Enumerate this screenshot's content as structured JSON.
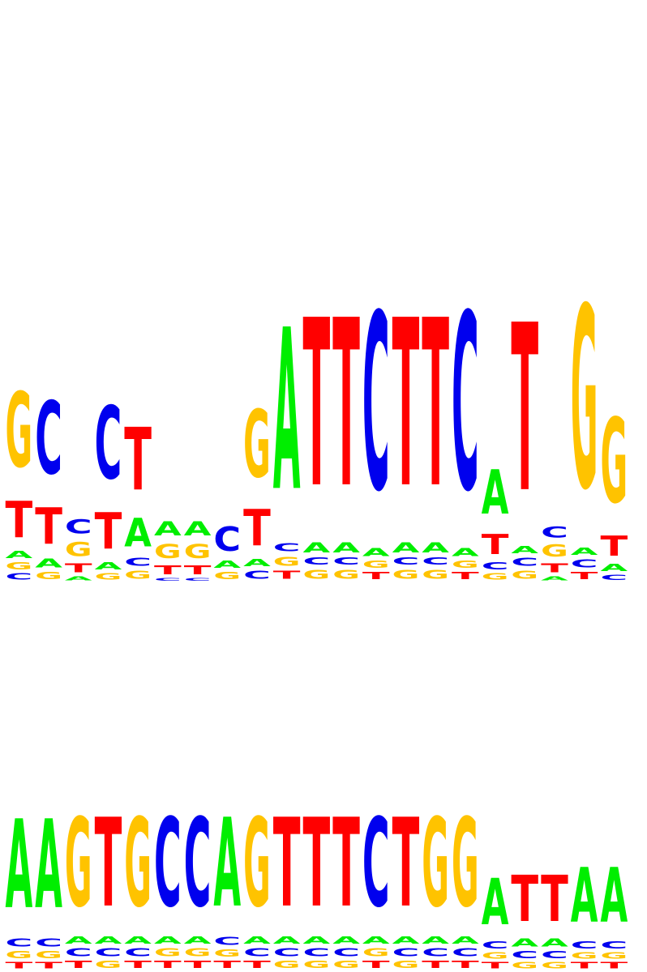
{
  "colors": {
    "A": "#00ee00",
    "C": "#0000ee",
    "G": "#ffc300",
    "T": "#ff0000"
  },
  "logos": [
    {
      "name": "sequence-logo-top",
      "columns": [
        [
          [
            "C",
            0.03
          ],
          [
            "G",
            0.035
          ],
          [
            "A",
            0.035
          ],
          [
            "T",
            0.18
          ],
          [
            "G",
            0.37
          ]
        ],
        [
          [
            "G",
            0.035
          ],
          [
            "A",
            0.045
          ],
          [
            "T",
            0.18
          ],
          [
            "C",
            0.36
          ]
        ],
        [
          [
            "A",
            0.02
          ],
          [
            "T",
            0.045
          ],
          [
            "G",
            0.07
          ],
          [
            "C",
            0.07
          ]
        ],
        [
          [
            "G",
            0.03
          ],
          [
            "A",
            0.035
          ],
          [
            "T",
            0.18
          ],
          [
            "C",
            0.36
          ]
        ],
        [
          [
            "G",
            0.04
          ],
          [
            "C",
            0.04
          ],
          [
            "A",
            0.14
          ],
          [
            "T",
            0.31
          ]
        ],
        [
          [
            "C",
            0.013
          ],
          [
            "T",
            0.045
          ],
          [
            "G",
            0.07
          ],
          [
            "A",
            0.07
          ]
        ],
        [
          [
            "C",
            0.013
          ],
          [
            "T",
            0.045
          ],
          [
            "G",
            0.07
          ],
          [
            "A",
            0.07
          ]
        ],
        [
          [
            "G",
            0.035
          ],
          [
            "A",
            0.035
          ],
          [
            "C",
            0.12
          ]
        ],
        [
          [
            "C",
            0.04
          ],
          [
            "A",
            0.035
          ],
          [
            "T",
            0.18
          ],
          [
            "G",
            0.335
          ]
        ],
        [
          [
            "T",
            0.04
          ],
          [
            "G",
            0.045
          ],
          [
            "C",
            0.04
          ],
          [
            "A",
            0.8
          ]
        ],
        [
          [
            "G",
            0.045
          ],
          [
            "C",
            0.035
          ],
          [
            "A",
            0.05
          ],
          [
            "T",
            0.83
          ]
        ],
        [
          [
            "G",
            0.045
          ],
          [
            "C",
            0.035
          ],
          [
            "A",
            0.05
          ],
          [
            "T",
            0.83
          ]
        ],
        [
          [
            "T",
            0.035
          ],
          [
            "G",
            0.035
          ],
          [
            "A",
            0.04
          ],
          [
            "C",
            0.875
          ]
        ],
        [
          [
            "G",
            0.045
          ],
          [
            "C",
            0.035
          ],
          [
            "A",
            0.05
          ],
          [
            "T",
            0.83
          ]
        ],
        [
          [
            "G",
            0.045
          ],
          [
            "C",
            0.035
          ],
          [
            "A",
            0.05
          ],
          [
            "T",
            0.83
          ]
        ],
        [
          [
            "T",
            0.035
          ],
          [
            "G",
            0.035
          ],
          [
            "A",
            0.04
          ],
          [
            "C",
            0.875
          ]
        ],
        [
          [
            "G",
            0.03
          ],
          [
            "C",
            0.035
          ],
          [
            "T",
            0.1
          ],
          [
            "A",
            0.22
          ]
        ],
        [
          [
            "G",
            0.04
          ],
          [
            "C",
            0.04
          ],
          [
            "A",
            0.035
          ],
          [
            "T",
            0.83
          ]
        ],
        [
          [
            "A",
            0.02
          ],
          [
            "T",
            0.045
          ],
          [
            "G",
            0.06
          ],
          [
            "C",
            0.055
          ]
        ],
        [
          [
            "T",
            0.035
          ],
          [
            "C",
            0.04
          ],
          [
            "A",
            0.035
          ],
          [
            "G",
            0.9
          ]
        ],
        [
          [
            "C",
            0.025
          ],
          [
            "A",
            0.035
          ],
          [
            "T",
            0.1
          ],
          [
            "G",
            0.42
          ]
        ]
      ]
    },
    {
      "name": "sequence-logo-bottom",
      "columns": [
        [
          [
            "T",
            0.03
          ],
          [
            "G",
            0.035
          ],
          [
            "C",
            0.04
          ],
          [
            "A",
            0.44
          ]
        ],
        [
          [
            "T",
            0.03
          ],
          [
            "G",
            0.035
          ],
          [
            "C",
            0.04
          ],
          [
            "A",
            0.44
          ]
        ],
        [
          [
            "T",
            0.035
          ],
          [
            "C",
            0.04
          ],
          [
            "A",
            0.035
          ],
          [
            "G",
            0.44
          ]
        ],
        [
          [
            "G",
            0.035
          ],
          [
            "C",
            0.04
          ],
          [
            "A",
            0.035
          ],
          [
            "T",
            0.44
          ]
        ],
        [
          [
            "T",
            0.035
          ],
          [
            "C",
            0.04
          ],
          [
            "A",
            0.035
          ],
          [
            "G",
            0.44
          ]
        ],
        [
          [
            "T",
            0.035
          ],
          [
            "G",
            0.04
          ],
          [
            "A",
            0.035
          ],
          [
            "C",
            0.44
          ]
        ],
        [
          [
            "T",
            0.035
          ],
          [
            "G",
            0.04
          ],
          [
            "A",
            0.035
          ],
          [
            "C",
            0.44
          ]
        ],
        [
          [
            "T",
            0.035
          ],
          [
            "G",
            0.035
          ],
          [
            "C",
            0.04
          ],
          [
            "A",
            0.44
          ]
        ],
        [
          [
            "T",
            0.035
          ],
          [
            "C",
            0.04
          ],
          [
            "A",
            0.035
          ],
          [
            "G",
            0.44
          ]
        ],
        [
          [
            "G",
            0.035
          ],
          [
            "C",
            0.04
          ],
          [
            "A",
            0.035
          ],
          [
            "T",
            0.44
          ]
        ],
        [
          [
            "G",
            0.035
          ],
          [
            "C",
            0.04
          ],
          [
            "A",
            0.035
          ],
          [
            "T",
            0.44
          ]
        ],
        [
          [
            "G",
            0.035
          ],
          [
            "C",
            0.04
          ],
          [
            "A",
            0.035
          ],
          [
            "T",
            0.44
          ]
        ],
        [
          [
            "T",
            0.035
          ],
          [
            "G",
            0.04
          ],
          [
            "A",
            0.035
          ],
          [
            "C",
            0.44
          ]
        ],
        [
          [
            "G",
            0.035
          ],
          [
            "C",
            0.04
          ],
          [
            "A",
            0.035
          ],
          [
            "T",
            0.44
          ]
        ],
        [
          [
            "T",
            0.035
          ],
          [
            "C",
            0.04
          ],
          [
            "A",
            0.035
          ],
          [
            "G",
            0.44
          ]
        ],
        [
          [
            "T",
            0.035
          ],
          [
            "C",
            0.04
          ],
          [
            "A",
            0.035
          ],
          [
            "G",
            0.44
          ]
        ],
        [
          [
            "T",
            0.03
          ],
          [
            "G",
            0.03
          ],
          [
            "C",
            0.035
          ],
          [
            "A",
            0.23
          ]
        ],
        [
          [
            "G",
            0.03
          ],
          [
            "C",
            0.035
          ],
          [
            "A",
            0.04
          ],
          [
            "T",
            0.23
          ]
        ],
        [
          [
            "G",
            0.03
          ],
          [
            "C",
            0.035
          ],
          [
            "A",
            0.04
          ],
          [
            "T",
            0.23
          ]
        ],
        [
          [
            "T",
            0.03
          ],
          [
            "G",
            0.03
          ],
          [
            "C",
            0.035
          ],
          [
            "A",
            0.27
          ]
        ],
        [
          [
            "T",
            0.03
          ],
          [
            "G",
            0.03
          ],
          [
            "C",
            0.035
          ],
          [
            "A",
            0.27
          ]
        ]
      ]
    }
  ]
}
